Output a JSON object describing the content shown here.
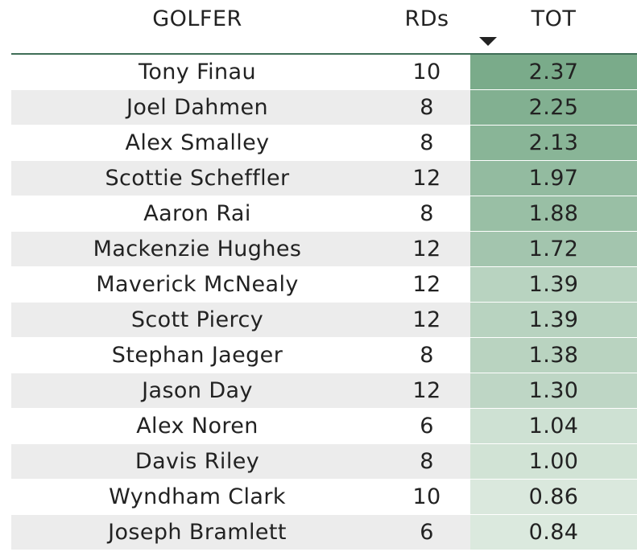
{
  "table": {
    "headers": {
      "golfer": "GOLFER",
      "rds": "RDs",
      "tot": "TOT"
    },
    "sort": {
      "column": "TOT",
      "direction": "descending",
      "icon": "sort-descending-icon"
    },
    "rows": [
      {
        "golfer": "Tony Finau",
        "rds": "10",
        "tot": "2.37"
      },
      {
        "golfer": "Joel Dahmen",
        "rds": "8",
        "tot": "2.25"
      },
      {
        "golfer": "Alex Smalley",
        "rds": "8",
        "tot": "2.13"
      },
      {
        "golfer": "Scottie Scheffler",
        "rds": "12",
        "tot": "1.97"
      },
      {
        "golfer": "Aaron Rai",
        "rds": "8",
        "tot": "1.88"
      },
      {
        "golfer": "Mackenzie Hughes",
        "rds": "12",
        "tot": "1.72"
      },
      {
        "golfer": "Maverick McNealy",
        "rds": "12",
        "tot": "1.39"
      },
      {
        "golfer": "Scott Piercy",
        "rds": "12",
        "tot": "1.39"
      },
      {
        "golfer": "Stephan Jaeger",
        "rds": "8",
        "tot": "1.38"
      },
      {
        "golfer": "Jason Day",
        "rds": "12",
        "tot": "1.30"
      },
      {
        "golfer": "Alex Noren",
        "rds": "6",
        "tot": "1.04"
      },
      {
        "golfer": "Davis Riley",
        "rds": "8",
        "tot": "1.00"
      },
      {
        "golfer": "Wyndham Clark",
        "rds": "10",
        "tot": "0.86"
      },
      {
        "golfer": "Joseph Bramlett",
        "rds": "6",
        "tot": "0.84"
      }
    ]
  },
  "colors": {
    "header_rule": "#3f6e57",
    "row_alt": "#ececec",
    "heat_high": "#7aab8a",
    "heat_low": "#dbe9de"
  },
  "chart_data": {
    "type": "table",
    "columns": [
      "GOLFER",
      "RDs",
      "TOT"
    ],
    "rows": [
      [
        "Tony Finau",
        10,
        2.37
      ],
      [
        "Joel Dahmen",
        8,
        2.25
      ],
      [
        "Alex Smalley",
        8,
        2.13
      ],
      [
        "Scottie Scheffler",
        12,
        1.97
      ],
      [
        "Aaron Rai",
        8,
        1.88
      ],
      [
        "Mackenzie Hughes",
        12,
        1.72
      ],
      [
        "Maverick McNealy",
        12,
        1.39
      ],
      [
        "Scott Piercy",
        12,
        1.39
      ],
      [
        "Stephan Jaeger",
        8,
        1.38
      ],
      [
        "Jason Day",
        12,
        1.3
      ],
      [
        "Alex Noren",
        6,
        1.04
      ],
      [
        "Davis Riley",
        8,
        1.0
      ],
      [
        "Wyndham Clark",
        10,
        0.86
      ],
      [
        "Joseph Bramlett",
        6,
        0.84
      ]
    ],
    "sorted_by": "TOT",
    "sort_order": "descending",
    "conditional_format": {
      "column": "TOT",
      "scale": "green gradient, darker = higher"
    }
  }
}
